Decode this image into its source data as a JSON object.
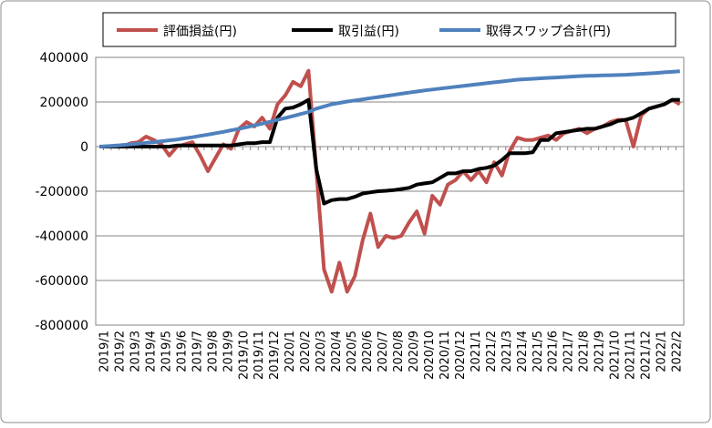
{
  "chart_data": {
    "type": "line",
    "categories": [
      "2019/1",
      null,
      "2019/2",
      null,
      "2019/3",
      null,
      "2019/4",
      null,
      "2019/5",
      null,
      "2019/6",
      null,
      "2019/7",
      null,
      "2019/8",
      null,
      "2019/9",
      null,
      "2019/10",
      null,
      "2019/11",
      null,
      "2019/12",
      null,
      "2020/1",
      null,
      "2020/2",
      null,
      "2020/3",
      null,
      "2020/4",
      null,
      "2020/5",
      null,
      "2020/6",
      null,
      "2020/7",
      null,
      "2020/8",
      null,
      "2020/9",
      null,
      "2020/10",
      null,
      "2020/11",
      null,
      "2020/12",
      null,
      "2021/1",
      null,
      "2021/2",
      null,
      "2021/3",
      null,
      "2021/4",
      null,
      "2021/5",
      null,
      "2021/6",
      null,
      "2021/7",
      null,
      "2021/8",
      null,
      "2021/9",
      null,
      "2021/10",
      null,
      "2021/11",
      null,
      "2021/12",
      null,
      "2022/1",
      null,
      "2022/2",
      null
    ],
    "series": [
      {
        "name": "評価損益(円)",
        "color": "#c0504d",
        "values": [
          0,
          0,
          5000,
          0,
          15000,
          20000,
          45000,
          30000,
          10000,
          -40000,
          0,
          10000,
          20000,
          -40000,
          -110000,
          -50000,
          10000,
          -10000,
          80000,
          110000,
          90000,
          130000,
          80000,
          190000,
          230000,
          290000,
          270000,
          340000,
          -100000,
          -550000,
          -650000,
          -520000,
          -650000,
          -580000,
          -420000,
          -300000,
          -450000,
          -400000,
          -410000,
          -400000,
          -340000,
          -290000,
          -390000,
          -220000,
          -260000,
          -170000,
          -150000,
          -110000,
          -150000,
          -110000,
          -160000,
          -70000,
          -130000,
          -20000,
          40000,
          30000,
          30000,
          40000,
          50000,
          30000,
          60000,
          70000,
          80000,
          60000,
          80000,
          90000,
          110000,
          120000,
          120000,
          0,
          140000,
          170000,
          180000,
          190000,
          210000,
          190000
        ]
      },
      {
        "name": "取引益(円)",
        "color": "#000000",
        "values": [
          0,
          0,
          0,
          0,
          0,
          0,
          0,
          0,
          0,
          0,
          5000,
          5000,
          5000,
          5000,
          5000,
          5000,
          5000,
          5000,
          10000,
          15000,
          15000,
          20000,
          20000,
          130000,
          170000,
          175000,
          190000,
          210000,
          -100000,
          -255000,
          -240000,
          -235000,
          -235000,
          -225000,
          -210000,
          -205000,
          -200000,
          -198000,
          -195000,
          -190000,
          -185000,
          -170000,
          -165000,
          -160000,
          -140000,
          -120000,
          -120000,
          -110000,
          -110000,
          -100000,
          -95000,
          -85000,
          -60000,
          -30000,
          -30000,
          -30000,
          -25000,
          30000,
          30000,
          60000,
          65000,
          70000,
          75000,
          80000,
          80000,
          90000,
          100000,
          115000,
          120000,
          130000,
          150000,
          170000,
          180000,
          190000,
          210000,
          210000
        ]
      },
      {
        "name": "取得スワップ合計(円)",
        "color": "#4f81bd",
        "values": [
          0,
          2000,
          4000,
          7000,
          10000,
          13000,
          17000,
          20000,
          24000,
          28000,
          32000,
          37000,
          42000,
          48000,
          54000,
          60000,
          66000,
          73000,
          80000,
          87000,
          95000,
          103000,
          111000,
          120000,
          128000,
          137000,
          146000,
          155000,
          170000,
          180000,
          190000,
          196000,
          202000,
          207000,
          212000,
          217000,
          222000,
          227000,
          232000,
          237000,
          242000,
          247000,
          252000,
          256000,
          260000,
          264000,
          268000,
          272000,
          276000,
          280000,
          284000,
          288000,
          292000,
          296000,
          300000,
          302000,
          304000,
          306000,
          308000,
          310000,
          312000,
          314000,
          316000,
          317000,
          318000,
          319000,
          320000,
          321000,
          322000,
          324000,
          326000,
          328000,
          330000,
          333000,
          335000,
          338000
        ]
      }
    ],
    "ylim": [
      -800000,
      400000
    ],
    "yticks": [
      -800000,
      -600000,
      -400000,
      -200000,
      0,
      200000,
      400000
    ],
    "grid": true,
    "legend": "top"
  }
}
